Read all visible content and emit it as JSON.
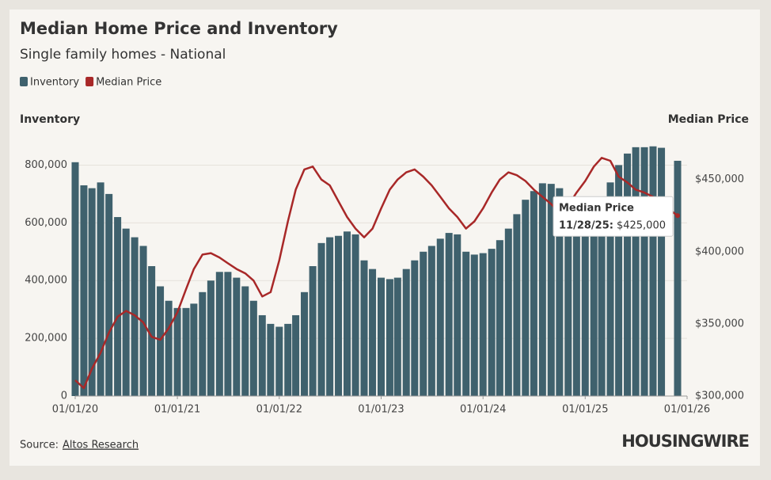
{
  "chart_data": {
    "type": "bar",
    "title": "Median Home Price and Inventory",
    "subtitle": "Single family homes - National",
    "y_label": "Inventory",
    "y2_label": "Median Price",
    "x": [
      "01/01/20",
      "02/01/20",
      "03/01/20",
      "04/01/20",
      "05/01/20",
      "06/01/20",
      "07/01/20",
      "08/01/20",
      "09/01/20",
      "10/01/20",
      "11/01/20",
      "12/01/20",
      "01/01/21",
      "02/01/21",
      "03/01/21",
      "04/01/21",
      "05/01/21",
      "06/01/21",
      "07/01/21",
      "08/01/21",
      "09/01/21",
      "10/01/21",
      "11/01/21",
      "12/01/21",
      "01/01/22",
      "02/01/22",
      "03/01/22",
      "04/01/22",
      "05/01/22",
      "06/01/22",
      "07/01/22",
      "08/01/22",
      "09/01/22",
      "10/01/22",
      "11/01/22",
      "12/01/22",
      "01/01/23",
      "02/01/23",
      "03/01/23",
      "04/01/23",
      "05/01/23",
      "06/01/23",
      "07/01/23",
      "08/01/23",
      "09/01/23",
      "10/01/23",
      "11/01/23",
      "12/01/23",
      "01/01/24",
      "02/01/24",
      "03/01/24",
      "04/01/24",
      "05/01/24",
      "06/01/24",
      "07/01/24",
      "08/01/24",
      "09/01/24",
      "10/01/24",
      "11/01/24",
      "12/01/24",
      "01/01/25",
      "02/01/25",
      "03/01/25",
      "04/01/25",
      "05/01/25",
      "06/01/25",
      "07/01/25",
      "08/01/25",
      "09/01/25",
      "10/01/25",
      "11/28/25"
    ],
    "series": [
      {
        "name": "Inventory",
        "type": "bar",
        "color": "#3f616d",
        "values": [
          810000,
          730000,
          720000,
          740000,
          700000,
          620000,
          580000,
          550000,
          520000,
          450000,
          380000,
          330000,
          305000,
          305000,
          320000,
          360000,
          400000,
          430000,
          430000,
          410000,
          380000,
          330000,
          280000,
          250000,
          240000,
          250000,
          280000,
          360000,
          450000,
          530000,
          550000,
          555000,
          570000,
          560000,
          470000,
          440000,
          410000,
          405000,
          410000,
          440000,
          470000,
          500000,
          520000,
          545000,
          565000,
          560000,
          500000,
          490000,
          495000,
          510000,
          540000,
          580000,
          630000,
          680000,
          710000,
          737000,
          735000,
          720000,
          690000,
          660000,
          640000,
          650000,
          680000,
          740000,
          800000,
          840000,
          862000,
          862000,
          865000,
          860000,
          815000
        ]
      },
      {
        "name": "Median Price",
        "type": "line",
        "axis": "y2",
        "color": "#a82828",
        "values": [
          311000,
          305500,
          319000,
          330000,
          344000,
          355000,
          359000,
          356000,
          351000,
          341000,
          339000,
          347000,
          358000,
          374000,
          388000,
          398000,
          399000,
          396000,
          392000,
          388000,
          385000,
          380000,
          369000,
          372000,
          394000,
          421000,
          443000,
          457000,
          459000,
          450000,
          446000,
          435000,
          424000,
          416000,
          410000,
          416000,
          430000,
          443000,
          450000,
          455000,
          457000,
          452000,
          446000,
          438000,
          430000,
          424000,
          416000,
          421000,
          430000,
          441000,
          450000,
          455000,
          453000,
          449000,
          443000,
          438000,
          433000,
          427000,
          432000,
          441000,
          449000,
          459000,
          465000,
          463000,
          452000,
          448000,
          443000,
          441000,
          438000,
          433000,
          425000
        ]
      }
    ],
    "xlim": [
      "01/01/20",
      "01/01/26"
    ],
    "xticks": [
      "01/01/20",
      "01/01/21",
      "01/01/22",
      "01/01/23",
      "01/01/24",
      "01/01/25",
      "01/01/26"
    ],
    "ylim": [
      0,
      900000
    ],
    "yticks": [
      0,
      {
        "value": 200000,
        "label": "200,000"
      },
      {
        "value": 400000,
        "label": "400,000"
      },
      {
        "value": 600000,
        "label": "600,000"
      },
      {
        "value": 800000,
        "label": "800,000"
      }
    ],
    "y2lim": [
      300000,
      480000
    ],
    "y2ticks": [
      {
        "value": 300000,
        "label": "$300,000"
      },
      {
        "value": 350000,
        "label": "$350,000"
      },
      {
        "value": 400000,
        "label": "$400,000"
      },
      {
        "value": 450000,
        "label": "$450,000"
      }
    ],
    "grid": true,
    "tooltip": {
      "title": "Median Price",
      "date_label": "11/28/25:",
      "value": 425000,
      "value_label": "$425,000"
    },
    "source_label": "Source:",
    "source": "Altos Research",
    "brand": "HOUSINGWIRE"
  }
}
